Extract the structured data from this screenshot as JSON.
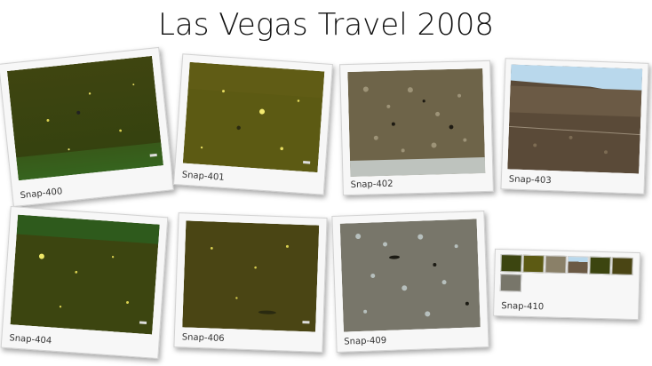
{
  "page": {
    "title": "Las Vegas Travel 2008"
  },
  "photos": [
    {
      "id": "p400",
      "caption": "Snap-400",
      "tone": "green"
    },
    {
      "id": "p401",
      "caption": "Snap-401",
      "tone": "yellowgreen"
    },
    {
      "id": "p402",
      "caption": "Snap-402",
      "tone": "brownspeckle"
    },
    {
      "id": "p403",
      "caption": "Snap-403",
      "tone": "brownsky"
    },
    {
      "id": "p404",
      "caption": "Snap-404",
      "tone": "green"
    },
    {
      "id": "p406",
      "caption": "Snap-406",
      "tone": "olive"
    },
    {
      "id": "p409",
      "caption": "Snap-409",
      "tone": "bluespeckle"
    },
    {
      "id": "p410",
      "caption": "Snap-410",
      "tone": "collage"
    }
  ],
  "colors": {
    "green": "#3b4a10",
    "yellowgreen": "#5a5a12",
    "brownspeckle": "#7a6a4a",
    "brownsky": "#6b5540",
    "olive": "#4a4512",
    "bluespeckle": "#7c7a6a",
    "sky": "#b9d8ec"
  }
}
